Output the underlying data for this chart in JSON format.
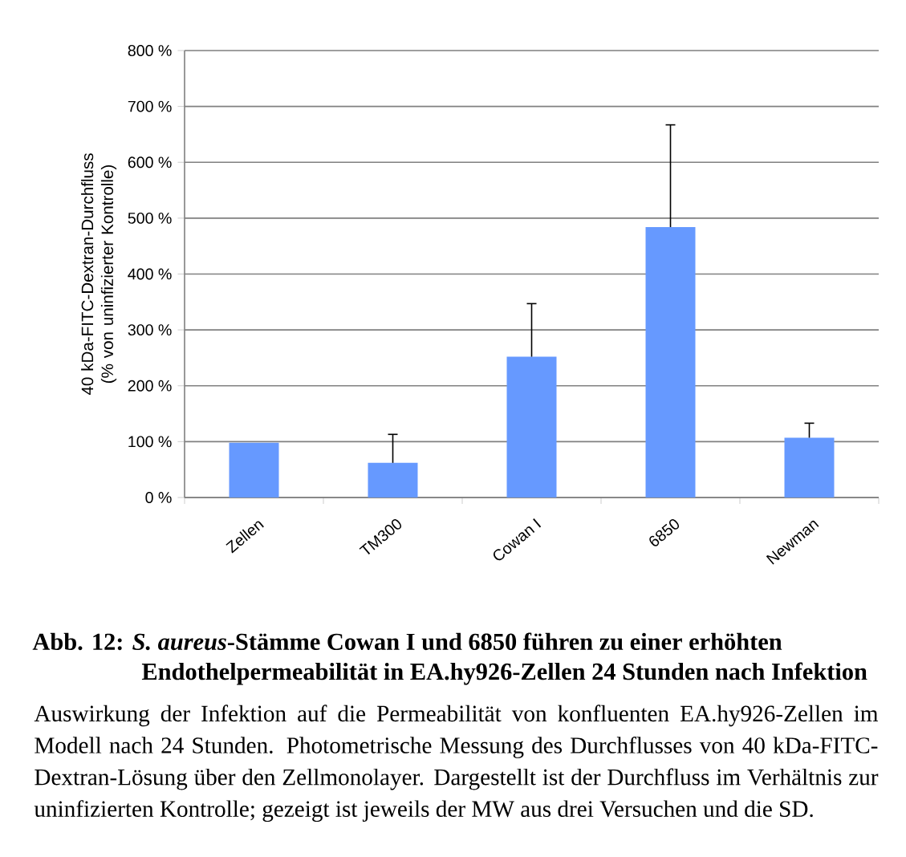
{
  "chart_data": {
    "type": "bar",
    "title": "Abb. 12: *S. aureus*-Stämme Cowan I und 6850 führen zu einer erhöhten Endothelpermeabilität in EA.hy926-Zellen 24 Stunden nach Infektion",
    "ylabel": "40 kDa-FITC-Dextran-Durchfluss (% von uninfizierter Kontrolle)",
    "categories": [
      "Zellen",
      "TM300",
      "Cowan I",
      "6850",
      "Newman"
    ],
    "values": [
      98,
      62,
      252,
      484,
      107
    ],
    "errors": [
      null,
      51,
      95,
      183,
      26
    ],
    "color": "#6699ff",
    "ylim": [
      0,
      800
    ],
    "yticks": [
      {
        "value": 0,
        "label": "0 %"
      },
      {
        "value": 100,
        "label": "100 %"
      },
      {
        "value": 200,
        "label": "200 %"
      },
      {
        "value": 300,
        "label": "300 %"
      },
      {
        "value": 400,
        "label": "400 %"
      },
      {
        "value": 500,
        "label": "500 %"
      },
      {
        "value": 600,
        "label": "600 %"
      },
      {
        "value": 700,
        "label": "700 %"
      },
      {
        "value": 800,
        "label": "800 %"
      }
    ],
    "grid": "y",
    "annotations": [
      "Auswirkung der Infektion auf die Permeabilität von konfluenten EA.hy926-Zellen im Modell nach 24 Stunden. Photometrische Messung des Durchflusses von 40 kDa-FITC-Dextran-Lösung über den Zellmonolayer. Dargestellt ist der Durchfluss im Verhältnis zur uninfizierten Kontrolle; gezeigt ist jeweils der MW aus drei Versuchen und die SD."
    ]
  }
}
